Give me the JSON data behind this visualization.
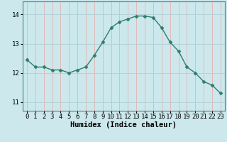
{
  "x": [
    0,
    1,
    2,
    3,
    4,
    5,
    6,
    7,
    8,
    9,
    10,
    11,
    12,
    13,
    14,
    15,
    16,
    17,
    18,
    19,
    20,
    21,
    22,
    23
  ],
  "y": [
    12.45,
    12.2,
    12.2,
    12.1,
    12.1,
    12.0,
    12.1,
    12.2,
    12.6,
    13.05,
    13.55,
    13.75,
    13.85,
    13.95,
    13.95,
    13.9,
    13.55,
    13.05,
    12.75,
    12.2,
    12.0,
    11.7,
    11.58,
    11.3
  ],
  "line_color": "#2e7d6e",
  "marker": "D",
  "markersize": 2.5,
  "linewidth": 1.0,
  "bg_color": "#cce8ec",
  "grid_color_v": "#e8b0b0",
  "grid_color_h": "#b0d0d5",
  "xlabel": "Humidex (Indice chaleur)",
  "xlabel_fontsize": 7.5,
  "yticks": [
    11,
    12,
    13,
    14
  ],
  "xticks": [
    0,
    1,
    2,
    3,
    4,
    5,
    6,
    7,
    8,
    9,
    10,
    11,
    12,
    13,
    14,
    15,
    16,
    17,
    18,
    19,
    20,
    21,
    22,
    23
  ],
  "xlim": [
    -0.5,
    23.5
  ],
  "ylim": [
    10.7,
    14.45
  ],
  "tick_fontsize": 6.5,
  "axis_color": "#2e7d6e",
  "spine_color": "#4a8080"
}
